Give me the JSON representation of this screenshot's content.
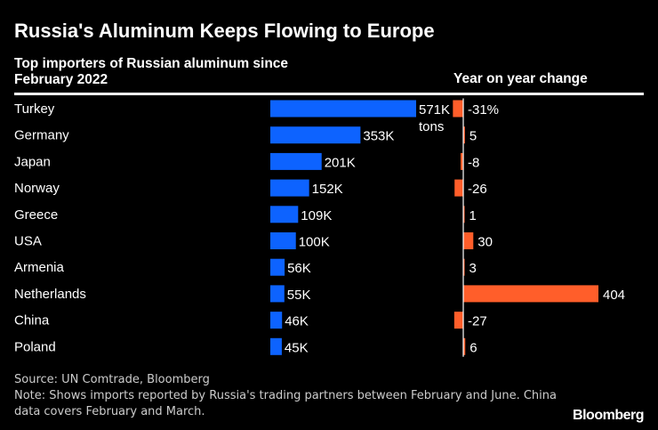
{
  "chart_data": {
    "type": "bar",
    "title": "Russia's Aluminum Keeps Flowing to Europe",
    "subtitle": "Top importers of Russian aluminum since February 2022",
    "categories": [
      "Turkey",
      "Germany",
      "Japan",
      "Norway",
      "Greece",
      "USA",
      "Armenia",
      "Netherlands",
      "China",
      "Poland"
    ],
    "series": [
      {
        "name": "Top importers of Russian aluminum since February 2022",
        "values": [
          571,
          353,
          201,
          152,
          109,
          100,
          56,
          55,
          46,
          45
        ],
        "labels": [
          "571K",
          "353K",
          "201K",
          "152K",
          "109K",
          "100K",
          "56K",
          "55K",
          "46K",
          "45K"
        ],
        "unit_note": "tons",
        "color": "#0d63ff"
      },
      {
        "name": "Year on year change",
        "values": [
          -31,
          5,
          -8,
          -26,
          1,
          30,
          3,
          404,
          -27,
          6
        ],
        "labels": [
          "-31%",
          "5",
          "-8",
          "-26",
          "1",
          "30",
          "3",
          "404",
          "-27",
          "6"
        ],
        "color": "#ff5e2a"
      }
    ],
    "source": "Source: UN Comtrade, Bloomberg",
    "note": "Note: Shows imports reported by Russia's trading partners between February and June. China data covers February and March.",
    "brand": "Bloomberg"
  }
}
